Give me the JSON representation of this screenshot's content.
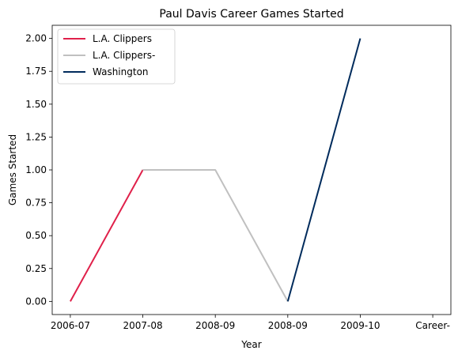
{
  "chart_data": {
    "type": "line",
    "title": "Paul Davis  Career Games Started",
    "xlabel": "Year",
    "ylabel": "Games Started",
    "x_tick_labels": [
      "2006-07",
      "2007-08",
      "2008-09",
      "2008-09",
      "2009-10",
      "Career-"
    ],
    "y_ticks": [
      "0.00",
      "0.25",
      "0.50",
      "0.75",
      "1.00",
      "1.25",
      "1.50",
      "1.75",
      "2.00"
    ],
    "ylim": [
      -0.1,
      2.1
    ],
    "xlim": [
      -0.25,
      5.25
    ],
    "legend_position": "upper-left",
    "series": [
      {
        "name": "L.A. Clippers",
        "color": "#e0204a",
        "x": [
          0,
          1
        ],
        "y": [
          0,
          1
        ]
      },
      {
        "name": "L.A. Clippers-",
        "color": "#c0c0c0",
        "x": [
          1,
          2,
          3
        ],
        "y": [
          1,
          1,
          0
        ]
      },
      {
        "name": "Washington",
        "color": "#002b5c",
        "x": [
          3,
          4
        ],
        "y": [
          0,
          2
        ]
      }
    ]
  }
}
